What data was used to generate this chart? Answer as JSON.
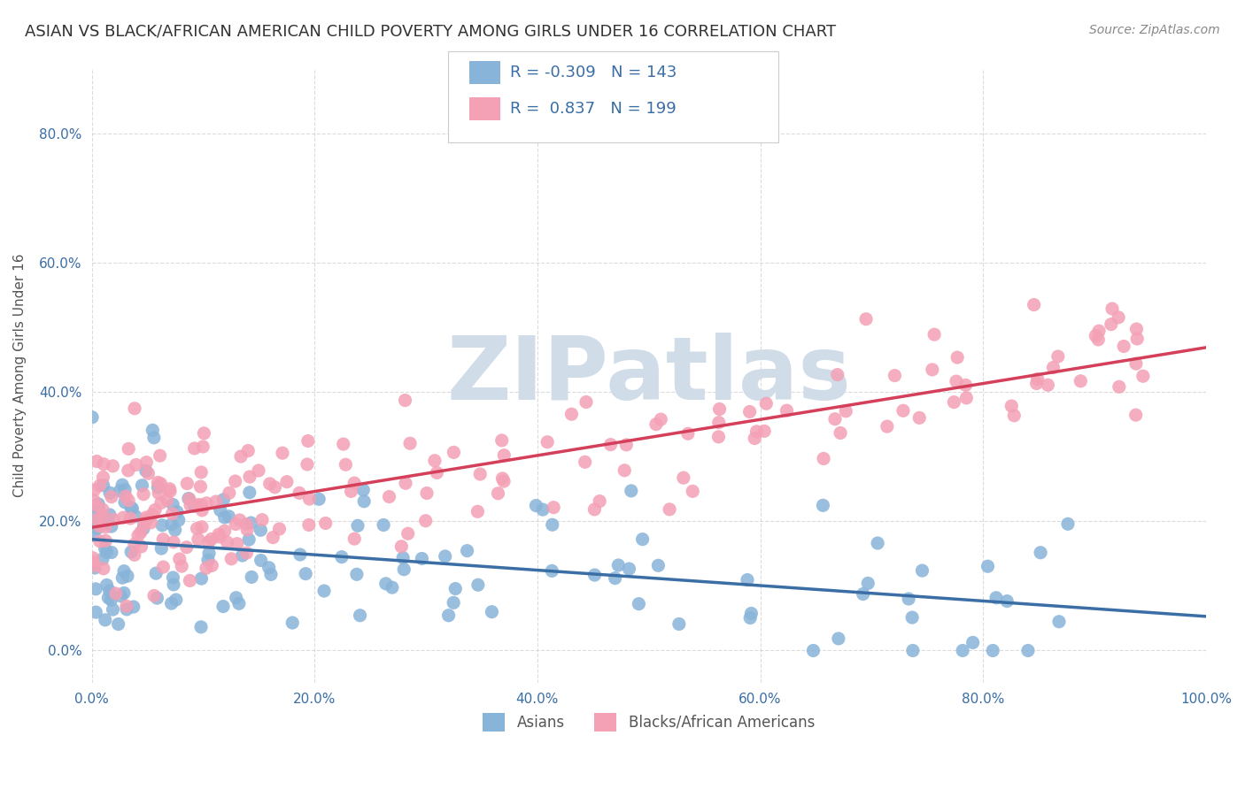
{
  "title": "ASIAN VS BLACK/AFRICAN AMERICAN CHILD POVERTY AMONG GIRLS UNDER 16 CORRELATION CHART",
  "source": "Source: ZipAtlas.com",
  "ylabel": "Child Poverty Among Girls Under 16",
  "xlabel": "",
  "xlim": [
    0,
    100
  ],
  "ylim": [
    -5,
    90
  ],
  "asian_R": -0.309,
  "asian_N": 143,
  "black_R": 0.837,
  "black_N": 199,
  "asian_color": "#89b4d9",
  "black_color": "#f4a0b5",
  "asian_line_color": "#3a6ea5",
  "black_line_color": "#d43f5a",
  "background_color": "#ffffff",
  "watermark": "ZIPatlas",
  "watermark_color": "#d0dce8",
  "grid_color": "#cccccc",
  "ytick_labels": [
    "0.0%",
    "20.0%",
    "40.0%",
    "60.0%",
    "80.0%"
  ],
  "ytick_values": [
    0,
    20,
    40,
    60,
    80
  ],
  "xtick_labels": [
    "0.0%",
    "20.0%",
    "40.0%",
    "60.0%",
    "80.0%",
    "100.0%"
  ],
  "xtick_values": [
    0,
    20,
    40,
    60,
    80,
    100
  ],
  "title_fontsize": 13,
  "axis_label_fontsize": 11,
  "tick_fontsize": 11,
  "legend_fontsize": 13,
  "source_fontsize": 10
}
